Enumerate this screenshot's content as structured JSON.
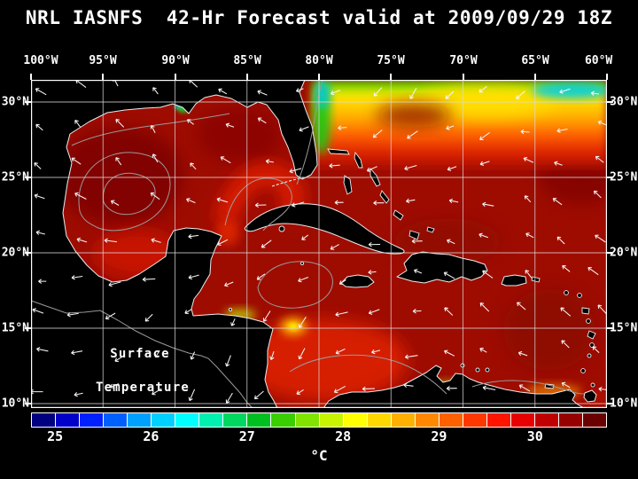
{
  "title": "NRL IASNFS  42-Hr Forecast valid at 2009/09/29 18Z",
  "map": {
    "lon_labels": [
      "100°W",
      "95°W",
      "90°W",
      "85°W",
      "80°W",
      "75°W",
      "70°W",
      "65°W",
      "60°W"
    ],
    "lat_labels": [
      "30°N",
      "25°N",
      "20°N",
      "15°N",
      "10°N"
    ],
    "overlay_label_line1": "Surface",
    "overlay_label_line2": "Temperature"
  },
  "colorbar": {
    "unit_label": "°C",
    "tick_labels": [
      "25",
      "26",
      "27",
      "28",
      "29",
      "30"
    ],
    "tick_positions_pct": [
      4.17,
      20.83,
      37.5,
      54.17,
      70.83,
      87.5
    ],
    "segment_colors": [
      "#000080",
      "#0000c8",
      "#0020ff",
      "#0060ff",
      "#00a0ff",
      "#00d0ff",
      "#00ffff",
      "#00f0b0",
      "#00d860",
      "#00c020",
      "#38d000",
      "#80e400",
      "#c8f400",
      "#ffff00",
      "#ffd800",
      "#ffb000",
      "#ff8800",
      "#ff6000",
      "#ff3800",
      "#ff1400",
      "#e60000",
      "#c00000",
      "#960000",
      "#6b0000"
    ]
  },
  "chart_data": {
    "type": "heatmap",
    "title": "NRL IASNFS  42-Hr Forecast valid at 2009/09/29 18Z",
    "variable": "Surface Temperature",
    "units": "°C",
    "x_ticks": [
      "100°W",
      "95°W",
      "90°W",
      "85°W",
      "80°W",
      "75°W",
      "70°W",
      "65°W",
      "60°W"
    ],
    "y_ticks": [
      "30°N",
      "25°N",
      "20°N",
      "15°N",
      "10°N"
    ],
    "colorbar_ticks": [
      25,
      26,
      27,
      28,
      29,
      30
    ],
    "colorbar_colors": [
      "#000080",
      "#0000c8",
      "#0020ff",
      "#0060ff",
      "#00a0ff",
      "#00d0ff",
      "#00ffff",
      "#00f0b0",
      "#00d860",
      "#00c020",
      "#38d000",
      "#80e400",
      "#c8f400",
      "#ffff00",
      "#ffd800",
      "#ffb000",
      "#ff8800",
      "#ff6000",
      "#ff3800",
      "#ff1400",
      "#e60000",
      "#c00000",
      "#960000",
      "#6b0000"
    ],
    "region": "Gulf of Mexico, Caribbean Sea and western North Atlantic",
    "overlays": [
      "white vector arrows",
      "gray contour lines",
      "white coastlines",
      "5-degree latitude/longitude grid"
    ]
  }
}
